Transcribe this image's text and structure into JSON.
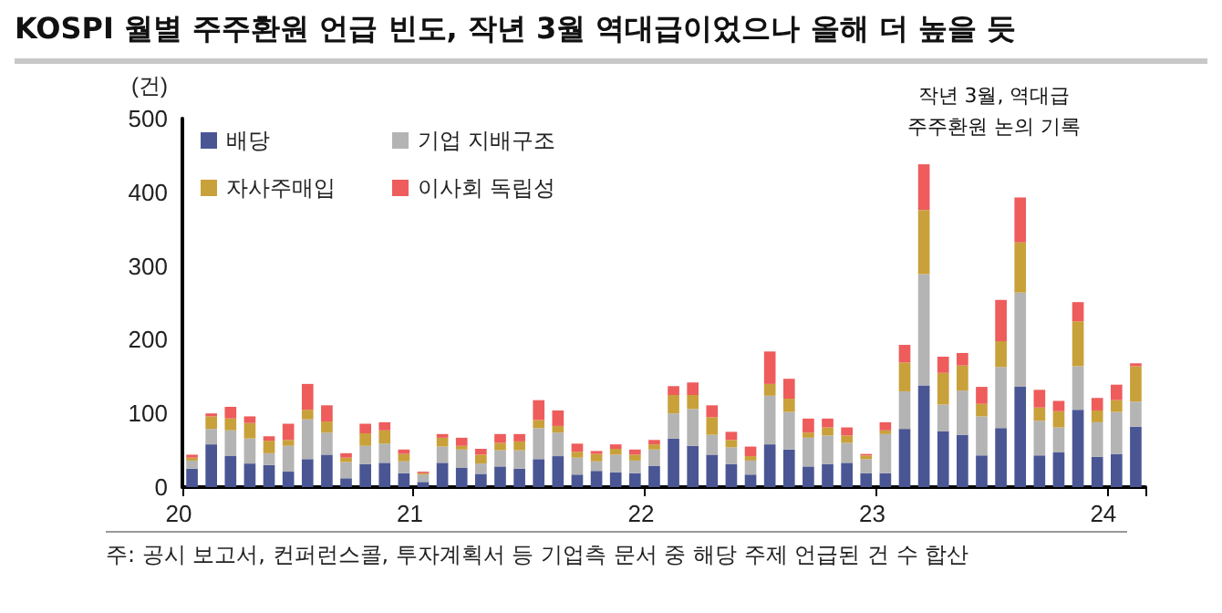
{
  "chart_data": {
    "type": "bar",
    "stacked": true,
    "title": "KOSPI 월별 주주환원 언급 빈도, 작년 3월 역대급이었으나 올해 더 높을 듯",
    "ylabel": "(건)",
    "annotations": [
      "작년 3월, 역대급\n주주환원 논의 기록",
      "주: 공시 보고서, 컨퍼런스콜, 투자계획서 등 기업측 문서 중 해당 주제 언급된 건 수 합산"
    ],
    "categories": [
      "20",
      null,
      null,
      null,
      null,
      null,
      null,
      null,
      null,
      null,
      null,
      null,
      "21",
      null,
      null,
      null,
      null,
      null,
      null,
      null,
      null,
      null,
      null,
      null,
      "22",
      null,
      null,
      null,
      null,
      null,
      null,
      null,
      null,
      null,
      null,
      null,
      "23",
      null,
      null,
      null,
      null,
      null,
      null,
      null,
      null,
      null,
      null,
      null,
      "24",
      null
    ],
    "series": [
      {
        "name": "배당",
        "color": "#4a5694",
        "values": [
          25,
          58,
          42,
          32,
          30,
          21,
          38,
          44,
          12,
          31,
          33,
          19,
          7,
          33,
          26,
          18,
          28,
          25,
          38,
          42,
          17,
          22,
          20,
          19,
          29,
          66,
          56,
          44,
          31,
          17,
          58,
          51,
          28,
          31,
          33,
          19,
          19,
          79,
          138,
          76,
          71,
          43,
          80,
          136,
          43,
          47,
          105,
          41,
          45,
          82
        ]
      },
      {
        "name": "기업 지배구조",
        "color": "#b4b4b4",
        "values": [
          11,
          21,
          35,
          34,
          16,
          35,
          54,
          30,
          22,
          25,
          26,
          16,
          10,
          22,
          25,
          14,
          22,
          25,
          42,
          32,
          23,
          13,
          24,
          17,
          22,
          34,
          50,
          27,
          23,
          19,
          66,
          51,
          39,
          39,
          27,
          19,
          53,
          51,
          151,
          36,
          60,
          53,
          83,
          128,
          47,
          34,
          59,
          47,
          57,
          34
        ]
      },
      {
        "name": "자사주매입",
        "color": "#c9a13a",
        "values": [
          4,
          17,
          16,
          21,
          17,
          8,
          13,
          15,
          6,
          17,
          18,
          10,
          2,
          12,
          5,
          12,
          10,
          12,
          11,
          9,
          8,
          10,
          8,
          8,
          7,
          25,
          19,
          24,
          10,
          6,
          16,
          18,
          7,
          11,
          10,
          5,
          5,
          39,
          87,
          43,
          34,
          17,
          35,
          68,
          18,
          22,
          61,
          16,
          16,
          48
        ]
      },
      {
        "name": "이사회 독립성",
        "color": "#ee5c5c",
        "values": [
          4,
          4,
          16,
          9,
          6,
          22,
          35,
          22,
          6,
          13,
          11,
          6,
          2,
          5,
          11,
          8,
          12,
          10,
          27,
          21,
          11,
          4,
          6,
          7,
          6,
          12,
          17,
          16,
          11,
          13,
          44,
          27,
          19,
          12,
          11,
          2,
          11,
          24,
          62,
          22,
          17,
          23,
          56,
          61,
          24,
          14,
          26,
          17,
          21,
          4
        ]
      }
    ],
    "ylim": [
      0,
      500
    ],
    "yticks": [
      0,
      100,
      200,
      300,
      400,
      500
    ],
    "grid": false,
    "legend": "top left"
  }
}
